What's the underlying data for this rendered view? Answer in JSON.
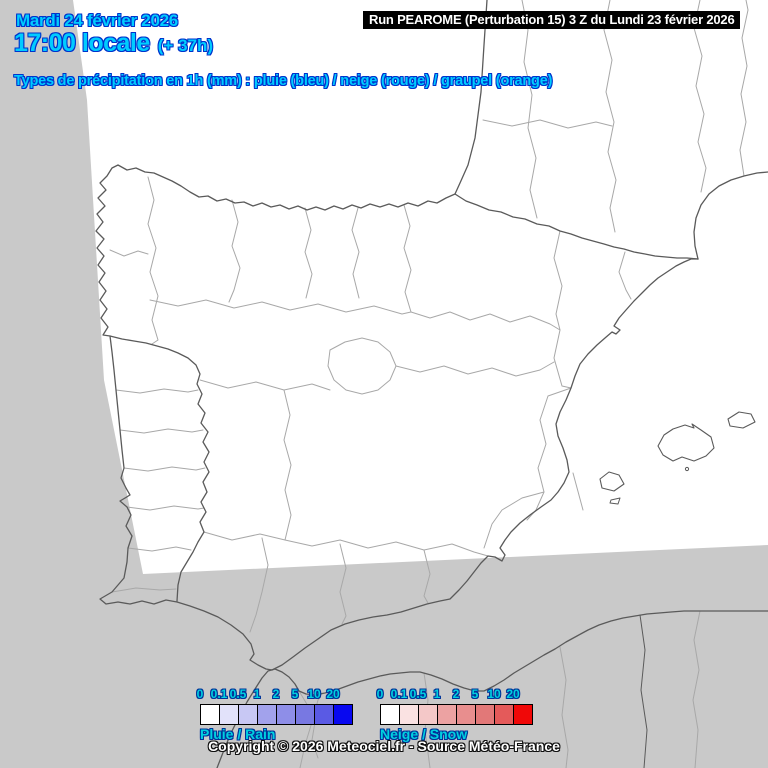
{
  "header": {
    "date": "Mardi 24 février 2026",
    "time": "17:00 locale",
    "offset": "(+ 37h)",
    "run_info": "Run PEAROME (Perturbation 15) 3 Z du Lundi 23 février 2026",
    "subtitle": "Types de précipitation en 1h (mm) : pluie (bleu) / neige (rouge) / graupel (orange)"
  },
  "legend": {
    "thresholds": [
      "0",
      "0.1",
      "0.5",
      "1",
      "2",
      "5",
      "10",
      "20"
    ],
    "rain": {
      "label": "Pluie / Rain",
      "colors": [
        "#ffffff",
        "#e2e2fa",
        "#c8c8f4",
        "#a2a2ec",
        "#8e8ee8",
        "#7878e2",
        "#5a5ae4",
        "#0808f0"
      ]
    },
    "snow": {
      "label": "Neige / Snow",
      "colors": [
        "#ffffff",
        "#fae2e2",
        "#f4c8c8",
        "#eca2a2",
        "#e88e8e",
        "#e27878",
        "#e45a5a",
        "#f00808"
      ]
    }
  },
  "footer": {
    "copyright": "Copyright © 2026 Meteociel.fr - Source Météo-France"
  },
  "colors": {
    "background": "#c9c9c9",
    "domain_fill": "#ffffff",
    "coastline": "#5a5a5a",
    "region_border": "#a8a8a8",
    "title_fill": "#00ccff",
    "title_outline": "#0033cc",
    "legend_text_fill": "#00d0e0",
    "legend_text_outline": "#003399",
    "banner_bg": "#000000",
    "banner_text": "#ffffff"
  }
}
